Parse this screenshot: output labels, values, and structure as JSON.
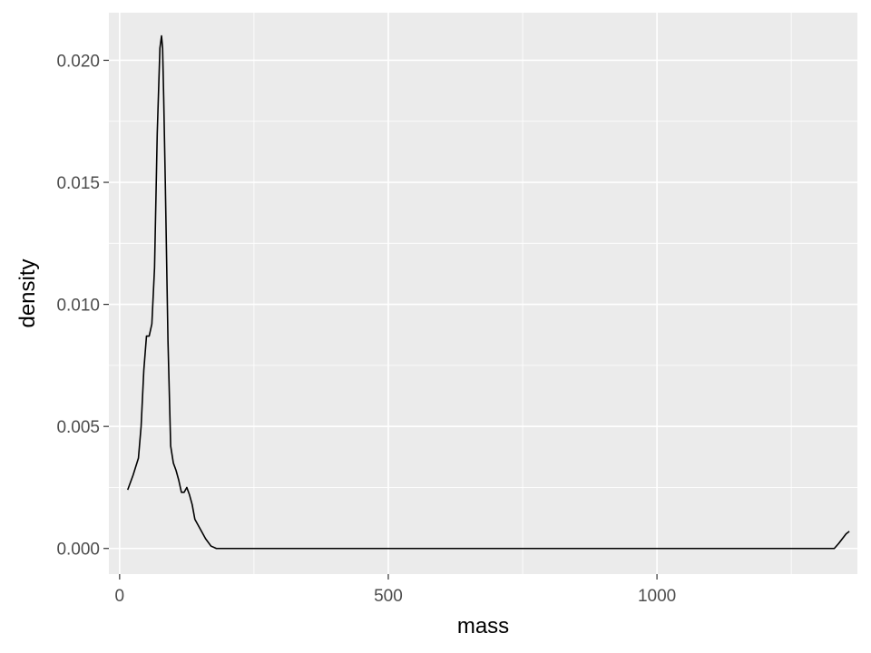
{
  "chart_data": {
    "type": "line",
    "title": "",
    "xlabel": "mass",
    "ylabel": "density",
    "xlim": [
      -20,
      1373
    ],
    "ylim": [
      -0.00105,
      0.02195
    ],
    "x_ticks": [
      0,
      500,
      1000
    ],
    "x_tick_labels": [
      "0",
      "500",
      "1000"
    ],
    "x_minor_ticks": [
      250,
      750,
      1250
    ],
    "y_ticks": [
      0,
      0.005,
      0.01,
      0.015,
      0.02
    ],
    "y_tick_labels": [
      "0.000",
      "0.005",
      "0.010",
      "0.015",
      "0.020"
    ],
    "y_minor_ticks": [
      0.0025,
      0.0075,
      0.0125,
      0.0175
    ],
    "grid": true,
    "panel_background": "#ebebeb",
    "grid_color": "#ffffff",
    "line_color": "#000000",
    "series": [
      {
        "x": [
          15,
          25,
          35,
          40,
          45,
          50,
          55,
          60,
          65,
          70,
          75,
          78,
          80,
          82,
          85,
          90,
          95,
          100,
          105,
          110,
          115,
          120,
          125,
          130,
          135,
          140,
          145,
          150,
          160,
          170,
          180,
          200,
          300,
          500,
          700,
          900,
          1100,
          1300,
          1330,
          1338,
          1345,
          1352,
          1358
        ],
        "y": [
          0.0024,
          0.003,
          0.0037,
          0.005,
          0.0073,
          0.0087,
          0.0087,
          0.0092,
          0.0115,
          0.017,
          0.0205,
          0.021,
          0.0205,
          0.0185,
          0.015,
          0.0085,
          0.0042,
          0.0035,
          0.0032,
          0.0028,
          0.0023,
          0.0023,
          0.0025,
          0.0022,
          0.0018,
          0.0012,
          0.001,
          0.0008,
          0.0004,
          0.0001,
          0.0,
          0.0,
          0.0,
          0.0,
          0.0,
          0.0,
          0.0,
          0.0,
          0.0,
          0.0002,
          0.0004,
          0.0006,
          0.0007
        ]
      }
    ]
  }
}
